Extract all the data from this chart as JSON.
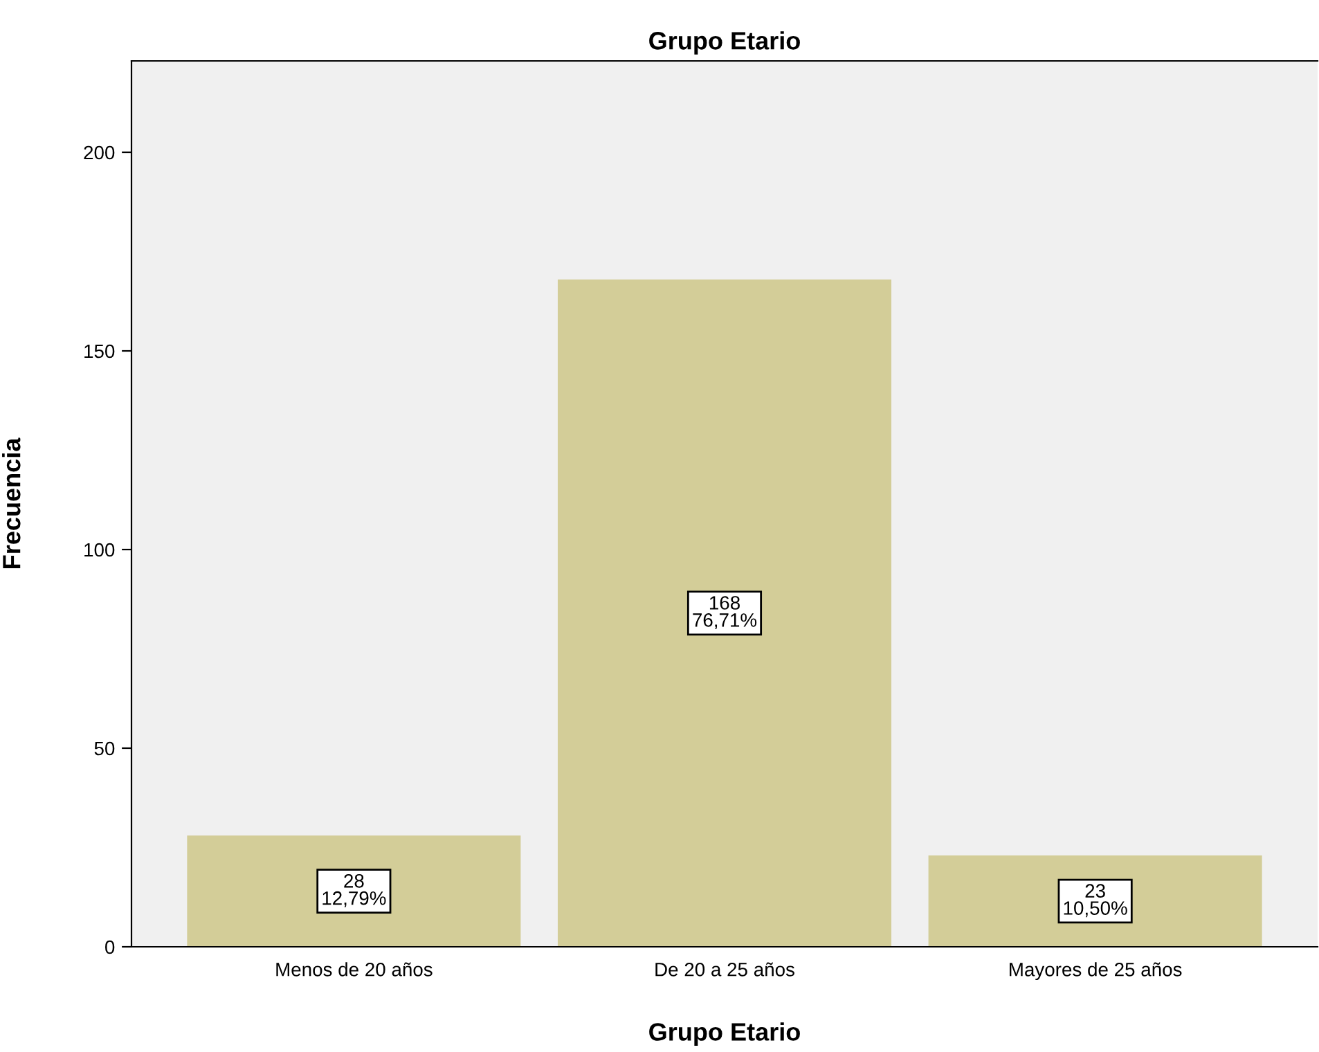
{
  "chart_data": {
    "type": "bar",
    "title": "Grupo Etario",
    "xlabel": "Grupo Etario",
    "ylabel": "Frecuencia",
    "categories": [
      "Menos de 20 años",
      "De 20 a 25 años",
      "Mayores de 25 años"
    ],
    "values": [
      28,
      168,
      23
    ],
    "value_labels": [
      "28\n12,79%",
      "168\n76,71%",
      "23\n10,50%"
    ],
    "color": "#d3cd98",
    "ylim": [
      0,
      223
    ],
    "yticks": [
      0,
      50,
      100,
      150,
      200
    ],
    "grid": false,
    "legend": false
  }
}
